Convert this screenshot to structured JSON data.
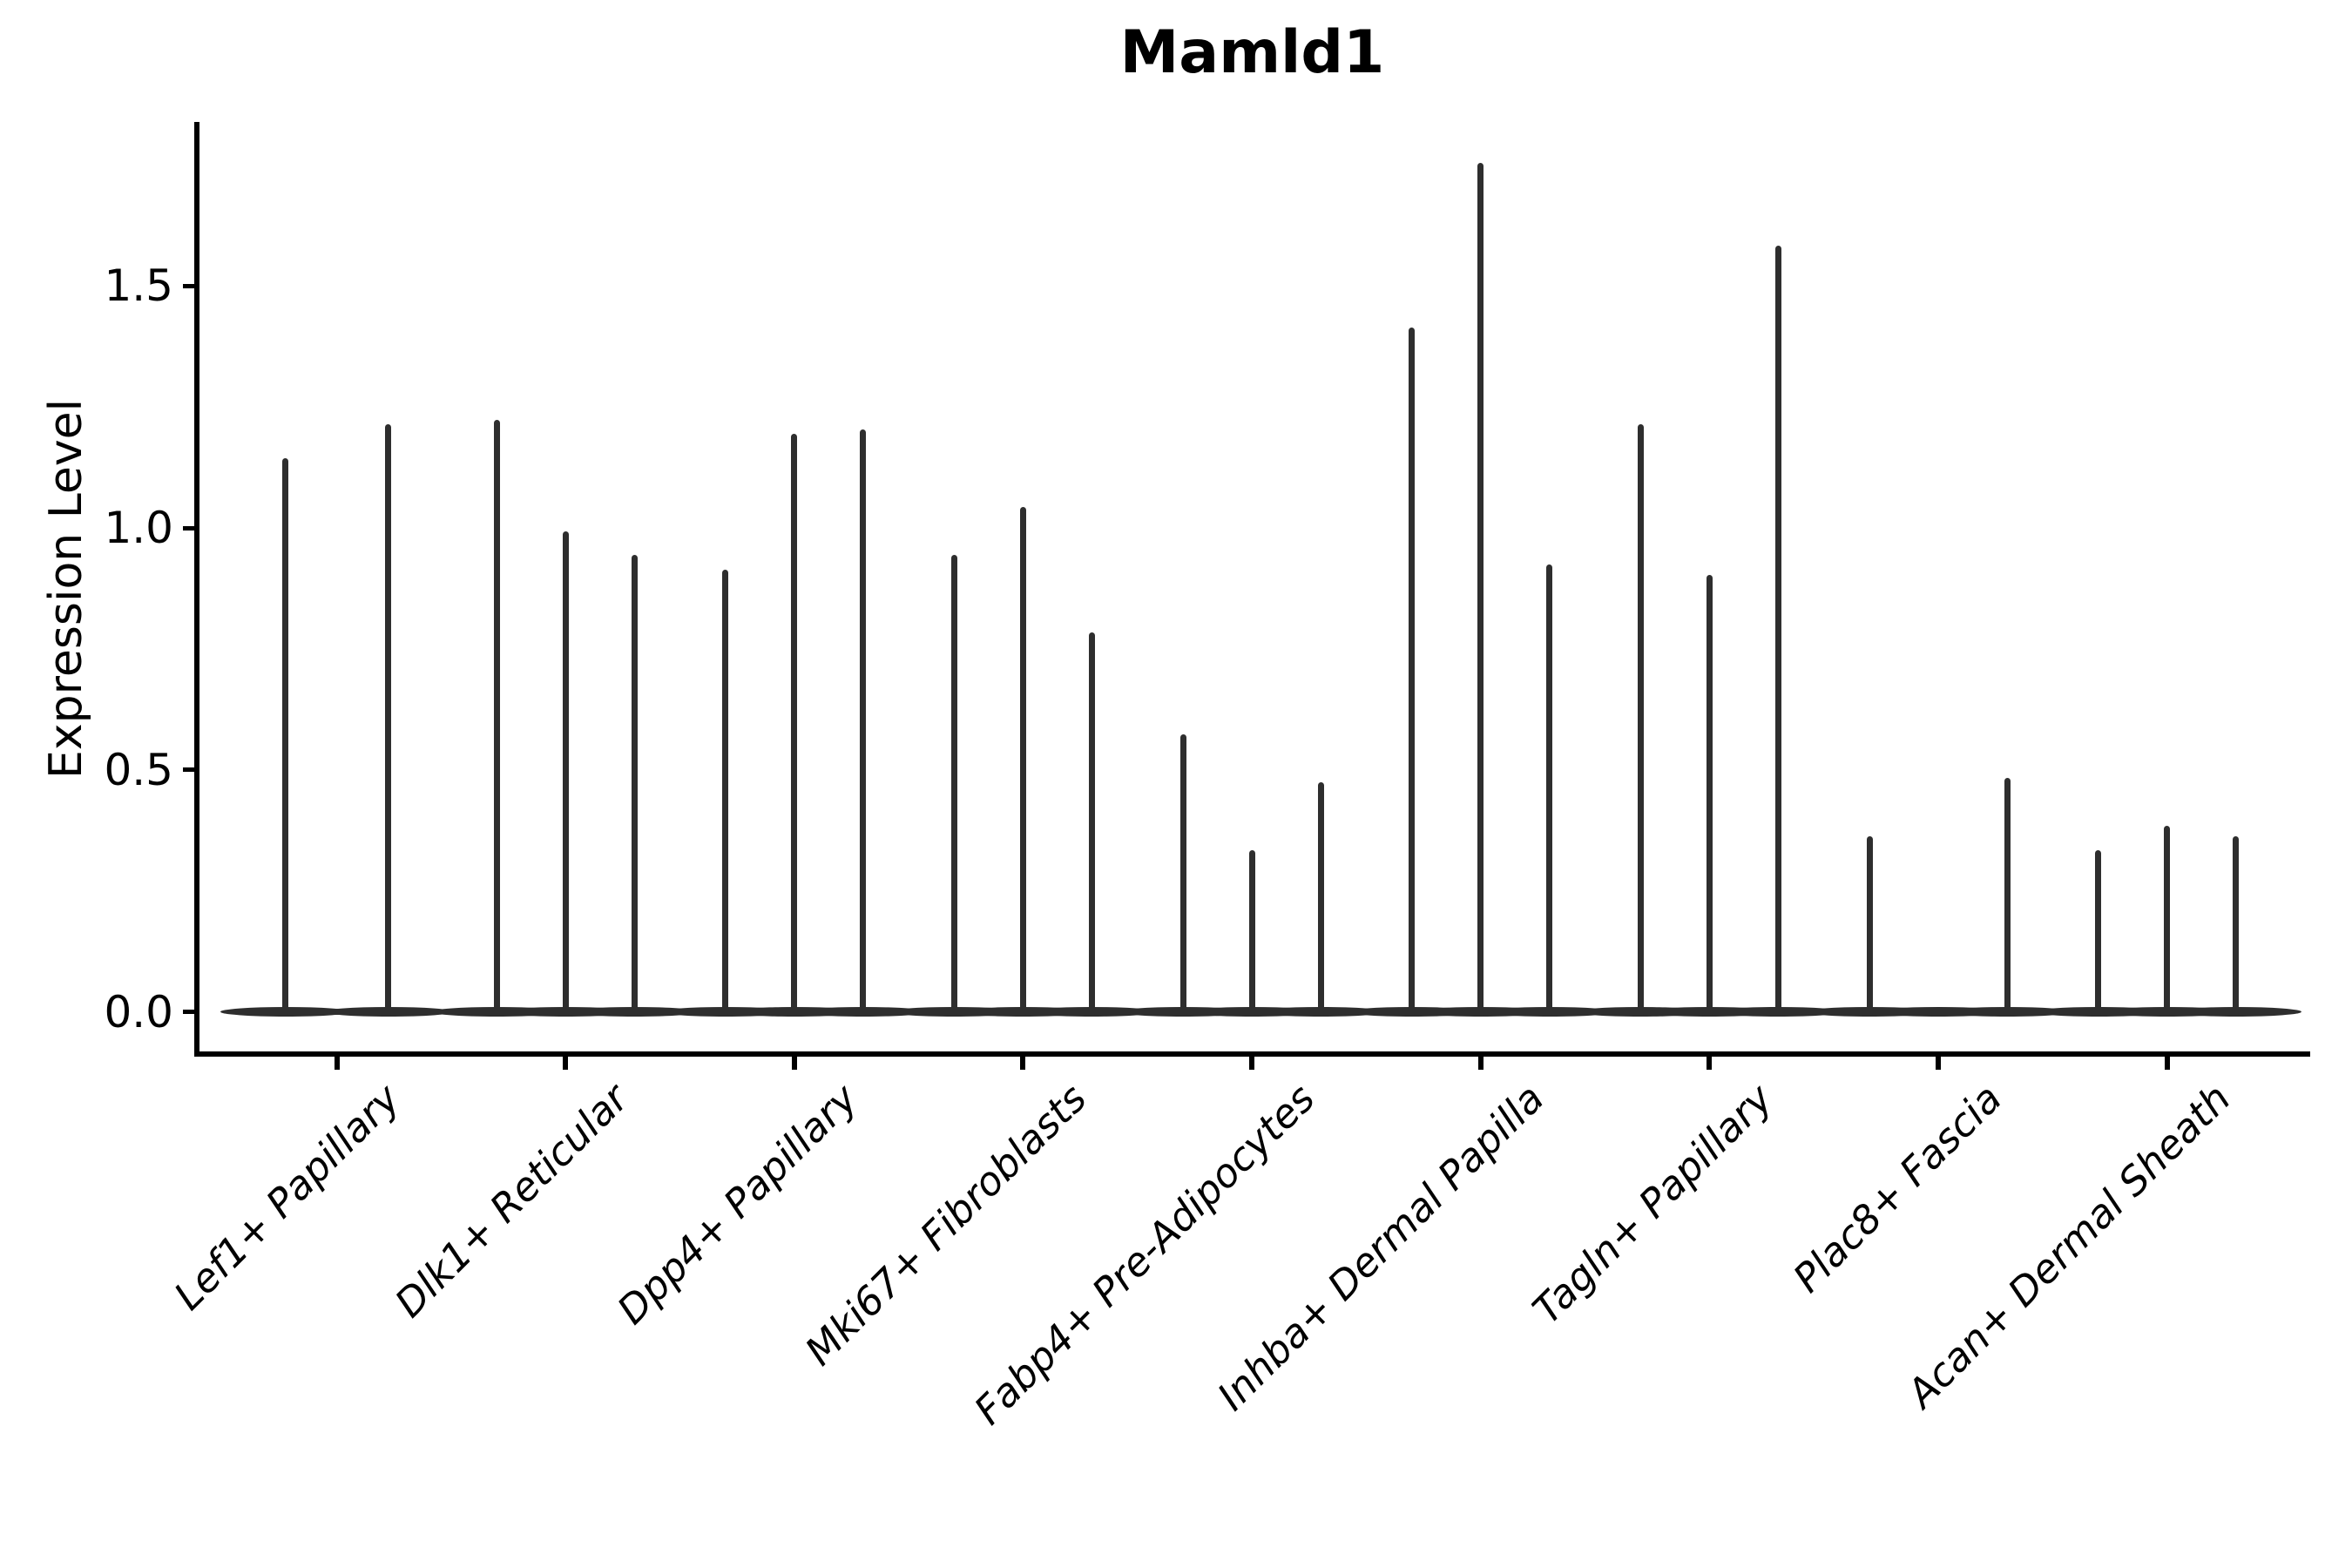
{
  "title": "Mamld1",
  "y_axis": {
    "label": "Expression Level",
    "tick_labels": [
      "0.0",
      "0.5",
      "1.0",
      "1.5"
    ],
    "tick_values": [
      0,
      0.5,
      1.0,
      1.5
    ]
  },
  "chart_data": {
    "type": "violin",
    "title": "Mamld1",
    "ylabel": "Expression Level",
    "xlabel": "",
    "ylim": [
      -0.09,
      1.84
    ],
    "grid": false,
    "legend": "none",
    "categories": [
      "Lef1+ Papillary",
      "Dlk1+ Reticular",
      "Dpp4+ Papillary",
      "Mki67+ Fibroblasts",
      "Fabp4+ Pre-Adipocytes",
      "Inhba+ Dermal Papilla",
      "Tagln+ Papillary",
      "Plac8+ Fascia",
      "Acan+ Dermal Sheath"
    ],
    "series": [
      {
        "category": "Lef1+ Papillary",
        "violin_max_values": [
          1.14,
          1.21
        ]
      },
      {
        "category": "Dlk1+ Reticular",
        "violin_max_values": [
          1.22,
          0.99,
          0.94
        ]
      },
      {
        "category": "Dpp4+ Papillary",
        "violin_max_values": [
          0.91,
          1.19,
          1.2
        ]
      },
      {
        "category": "Mki67+ Fibroblasts",
        "violin_max_values": [
          0.94,
          1.04,
          0.78
        ]
      },
      {
        "category": "Fabp4+ Pre-Adipocytes",
        "violin_max_values": [
          0.57,
          0.33,
          0.47
        ]
      },
      {
        "category": "Inhba+ Dermal Papilla",
        "violin_max_values": [
          1.41,
          1.75,
          0.92
        ]
      },
      {
        "category": "Tagln+ Papillary",
        "violin_max_values": [
          1.21,
          0.9,
          1.58
        ]
      },
      {
        "category": "Plac8+ Fascia",
        "violin_max_values": [
          0.36,
          0.0,
          0.48
        ]
      },
      {
        "category": "Acan+ Dermal Sheath",
        "violin_max_values": [
          0.33,
          0.38,
          0.36
        ]
      }
    ],
    "violin_color": "#2e2e2e",
    "axis_color": "#000000"
  }
}
